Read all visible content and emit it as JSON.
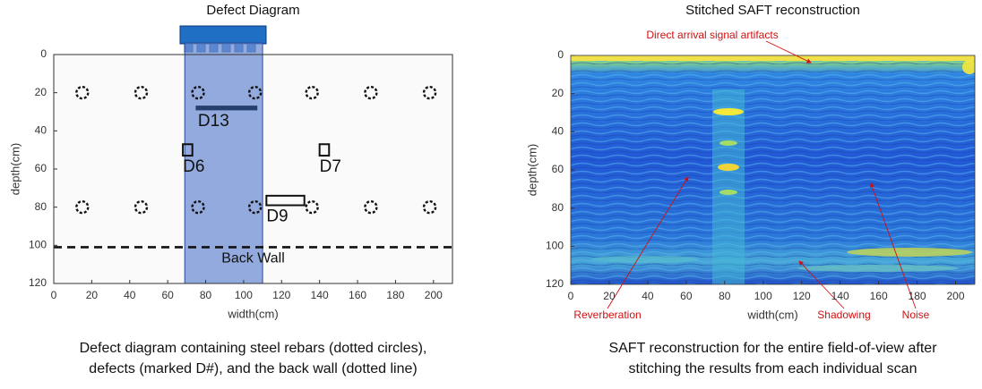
{
  "chart_data": [
    {
      "type": "defect-map",
      "title": "Defect Diagram",
      "xlabel": "width(cm)",
      "ylabel": "depth(cm)",
      "xlim": [
        0,
        210
      ],
      "ylim": [
        0,
        120
      ],
      "y_inverted": true,
      "xticks": [
        0,
        20,
        40,
        60,
        80,
        100,
        120,
        140,
        160,
        180,
        200
      ],
      "yticks": [
        0,
        20,
        40,
        60,
        80,
        100,
        120
      ],
      "scan_region": {
        "x": [
          69,
          110
        ]
      },
      "rebars": {
        "x": [
          15,
          46,
          76,
          106,
          136,
          167,
          198,
          15,
          46,
          76,
          106,
          136,
          167,
          198
        ],
        "y": [
          20,
          20,
          20,
          20,
          20,
          20,
          20,
          80,
          80,
          80,
          80,
          80,
          80,
          80
        ]
      },
      "defects": [
        {
          "label": "D13",
          "x": [
            75,
            107
          ],
          "y": [
            27,
            29
          ],
          "filled": true
        },
        {
          "label": "D6",
          "x": [
            68,
            73
          ],
          "y": [
            47,
            53
          ],
          "filled": false
        },
        {
          "label": "D7",
          "x": [
            140,
            145
          ],
          "y": [
            47,
            53
          ],
          "filled": false
        },
        {
          "label": "D9",
          "x": [
            112,
            132
          ],
          "y": [
            74,
            79
          ],
          "filled": false
        }
      ],
      "back_wall": {
        "label": "Back Wall",
        "y": 101
      },
      "caption": [
        "Defect diagram containing steel rebars (dotted circles),",
        "defects (marked D#), and the back wall (dotted line)"
      ]
    },
    {
      "type": "heatmap",
      "title": "Stitched SAFT reconstruction",
      "xlabel": "width(cm)",
      "ylabel": "depth(cm)",
      "xlim": [
        0,
        210
      ],
      "ylim": [
        0,
        120
      ],
      "y_inverted": true,
      "xticks": [
        0,
        20,
        40,
        60,
        80,
        100,
        120,
        140,
        160,
        180,
        200
      ],
      "yticks": [
        0,
        20,
        40,
        60,
        80,
        100,
        120
      ],
      "annotations": [
        "Direct arrival signal artifacts",
        "Reverberation",
        "Shadowing",
        "Noise"
      ],
      "caption": [
        "SAFT reconstruction for the entire field-of-view after",
        "stitching the results from each individual scan"
      ]
    }
  ]
}
